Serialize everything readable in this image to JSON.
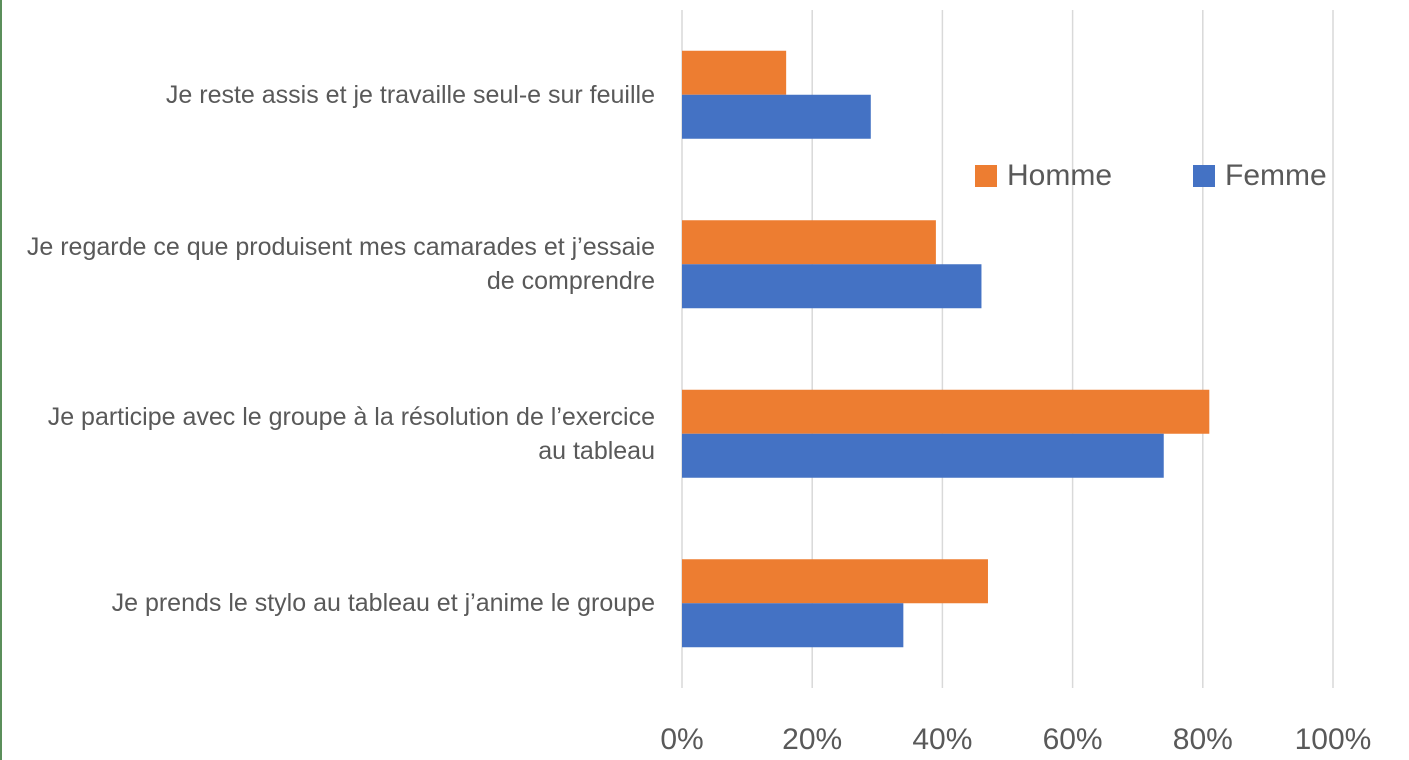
{
  "chart_data": {
    "type": "bar",
    "orientation": "horizontal",
    "categories": [
      "Je reste assis et je travaille seul-e sur feuille",
      "Je regarde ce que produisent mes camarades et j’essaie de comprendre",
      "Je participe avec le groupe à la résolution de l’exercice au tableau",
      "Je prends le stylo au tableau et j’anime le groupe"
    ],
    "series": [
      {
        "name": "Homme",
        "color": "#ed7d31",
        "values": [
          16,
          39,
          81,
          47
        ]
      },
      {
        "name": "Femme",
        "color": "#4472c4",
        "values": [
          29,
          46,
          74,
          34
        ]
      }
    ],
    "xlim": [
      0,
      100
    ],
    "xticks": [
      {
        "value": 0,
        "label": "0%"
      },
      {
        "value": 20,
        "label": "20%"
      },
      {
        "value": 40,
        "label": "40%"
      },
      {
        "value": 60,
        "label": "60%"
      },
      {
        "value": 80,
        "label": "80%"
      },
      {
        "value": 100,
        "label": "100%"
      }
    ],
    "grid": true,
    "legend": "upper right"
  }
}
